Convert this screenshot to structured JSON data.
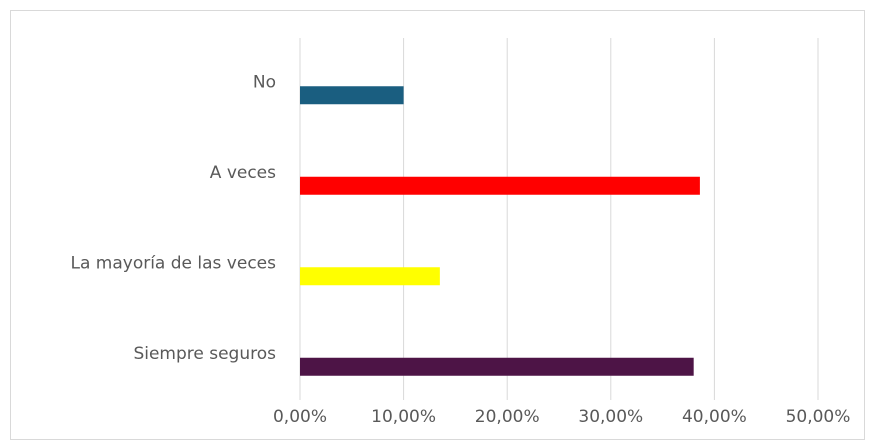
{
  "chart_data": {
    "type": "bar",
    "orientation": "horizontal",
    "categories": [
      "No",
      "A veces",
      "La mayoría de las veces",
      "Siempre seguros"
    ],
    "values": [
      10,
      38.6,
      13.5,
      38
    ],
    "colors": [
      "#1a5e80",
      "#ff0000",
      "#ffff00",
      "#4d1446"
    ],
    "xlim": [
      0,
      50
    ],
    "xticks": [
      {
        "value": 0,
        "label": "0,00%"
      },
      {
        "value": 10,
        "label": "10,00%"
      },
      {
        "value": 20,
        "label": "20,00%"
      },
      {
        "value": 30,
        "label": "30,00%"
      },
      {
        "value": 40,
        "label": "40,00%"
      },
      {
        "value": 50,
        "label": "50,00%"
      }
    ],
    "grid": true
  }
}
